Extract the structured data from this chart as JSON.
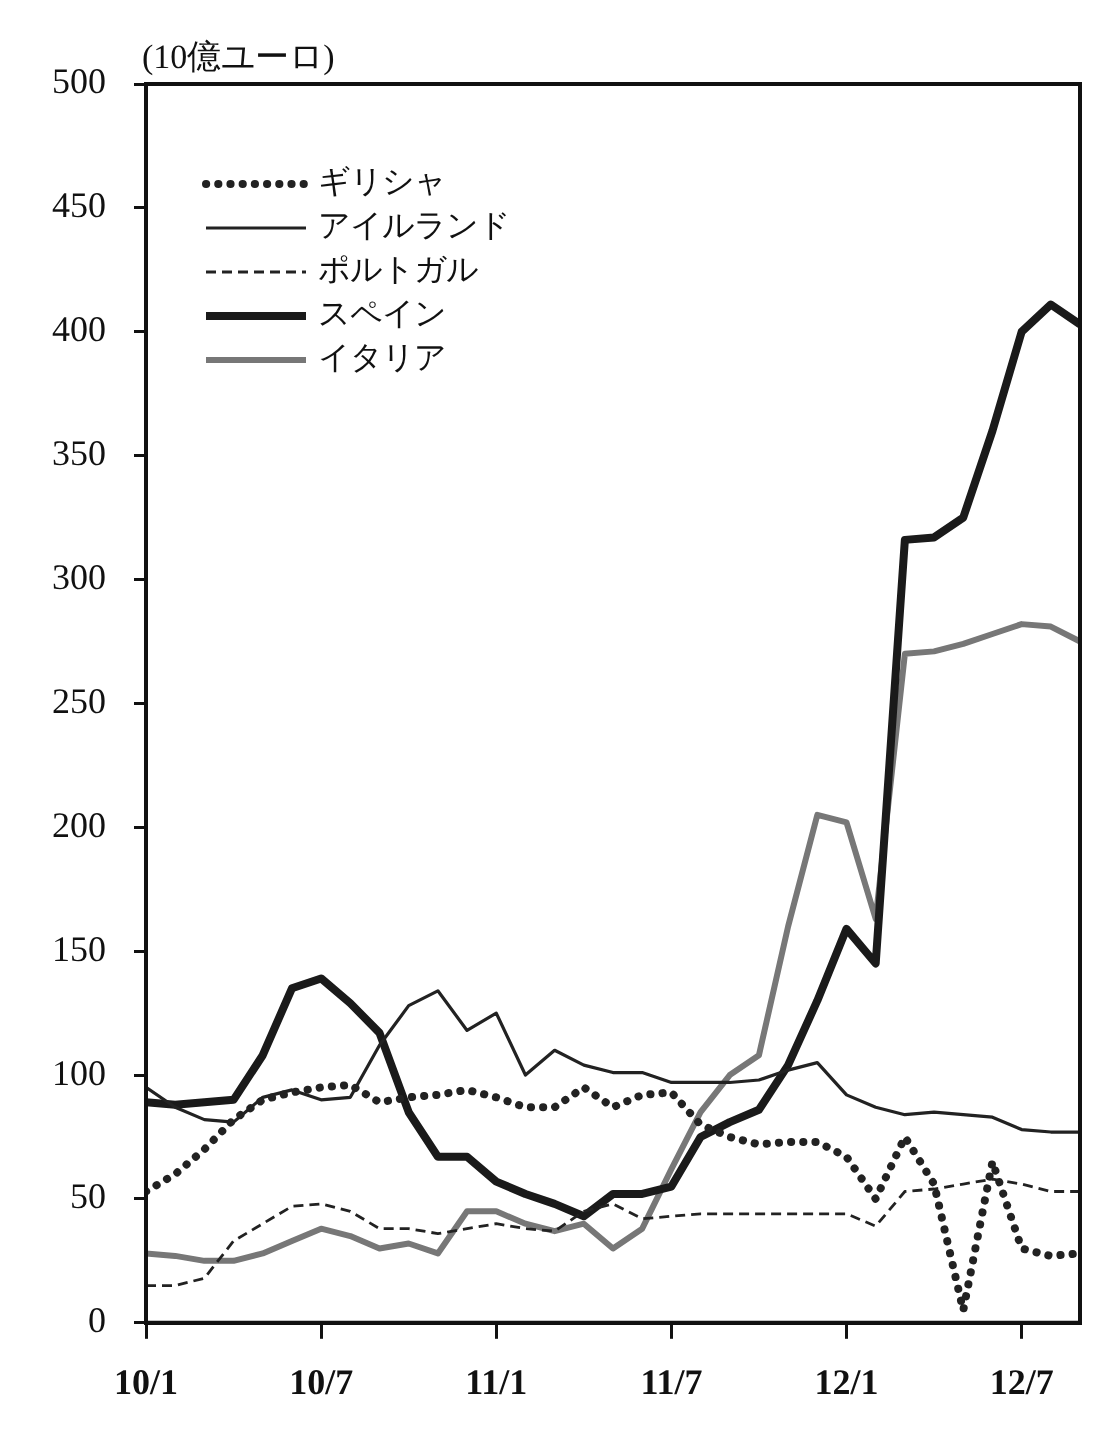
{
  "chart_data": {
    "type": "line",
    "ylabel": "(10億ユーロ)",
    "categories": [
      "10/1",
      null,
      null,
      null,
      null,
      null,
      "10/7",
      null,
      null,
      null,
      null,
      null,
      "11/1",
      null,
      null,
      null,
      null,
      null,
      "11/7",
      null,
      null,
      null,
      null,
      null,
      "12/1",
      null,
      null,
      null,
      null,
      null,
      "12/7",
      null,
      null
    ],
    "series": [
      {
        "name": "ギリシャ",
        "color": "#222222",
        "line_style": "dotted",
        "values": [
          53,
          60,
          70,
          82,
          90,
          93,
          95,
          96,
          89,
          91,
          92,
          94,
          91,
          87,
          87,
          95,
          87,
          92,
          93,
          80,
          75,
          72,
          73,
          73,
          67,
          50,
          75,
          56,
          5,
          65,
          30,
          27,
          28
        ]
      },
      {
        "name": "アイルランド",
        "color": "#222222",
        "line_style": "solid",
        "values": [
          95,
          87,
          82,
          81,
          91,
          94,
          90,
          91,
          112,
          128,
          134,
          118,
          125,
          100,
          110,
          104,
          101,
          101,
          97,
          97,
          97,
          98,
          102,
          105,
          92,
          87,
          84,
          85,
          84,
          83,
          78,
          77,
          77
        ]
      },
      {
        "name": "ポルトガル",
        "color": "#222222",
        "line_style": "dashed",
        "values": [
          15,
          15,
          18,
          33,
          40,
          47,
          48,
          45,
          38,
          38,
          36,
          38,
          40,
          38,
          37,
          45,
          48,
          42,
          43,
          44,
          44,
          44,
          44,
          44,
          44,
          39,
          53,
          54,
          56,
          58,
          56,
          53,
          53
        ]
      },
      {
        "name": "スペイン",
        "color": "#1a1a1a",
        "line_style": "solid",
        "values": [
          89,
          88,
          89,
          90,
          108,
          135,
          139,
          129,
          117,
          85,
          67,
          67,
          57,
          52,
          48,
          43,
          52,
          52,
          55,
          75,
          81,
          86,
          104,
          130,
          159,
          145,
          316,
          317,
          325,
          360,
          400,
          411,
          403
        ]
      },
      {
        "name": "イタリア",
        "color": "#777777",
        "line_style": "solid",
        "values": [
          28,
          27,
          25,
          25,
          28,
          33,
          38,
          35,
          30,
          32,
          28,
          45,
          45,
          40,
          37,
          40,
          30,
          38,
          62,
          85,
          100,
          108,
          160,
          205,
          202,
          163,
          270,
          271,
          274,
          278,
          282,
          281,
          275
        ]
      }
    ],
    "ylim": [
      0,
      500
    ],
    "yticks": [
      0,
      50,
      100,
      150,
      200,
      250,
      300,
      350,
      400,
      450,
      500
    ],
    "grid": false,
    "legend": "top left",
    "marker": "none"
  }
}
